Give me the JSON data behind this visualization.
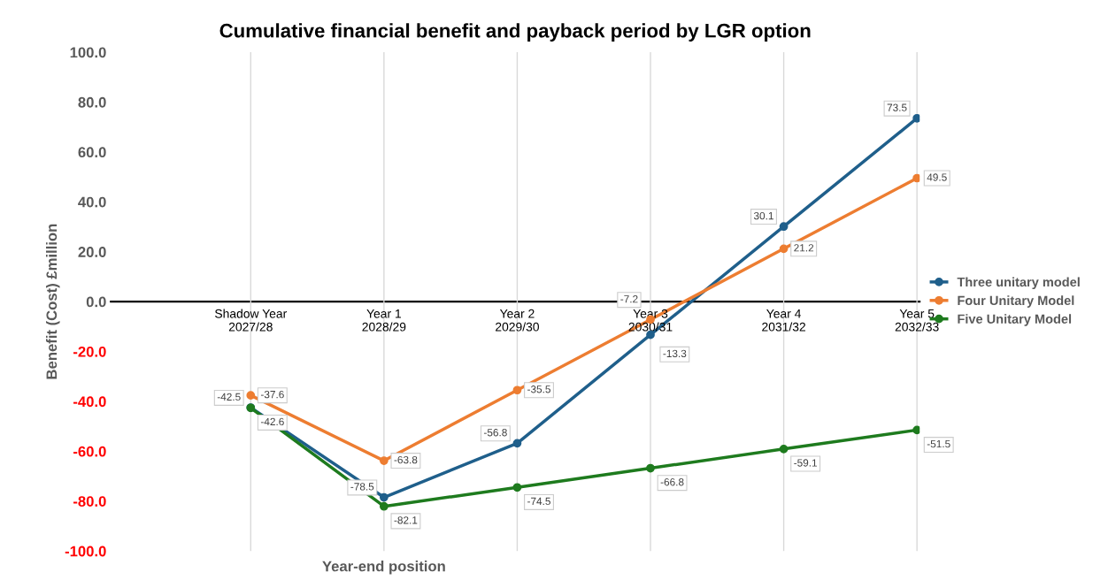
{
  "chart_data": {
    "type": "line",
    "title": "Cumulative financial benefit and payback period by LGR option",
    "xlabel": "Year-end position",
    "ylabel": "Benefit (Cost) £million",
    "categories": [
      "Shadow Year\n2027/28",
      "Year 1\n2028/29",
      "Year 2\n2029/30",
      "Year 3\n2030/31",
      "Year 4\n2031/32",
      "Year 5\n2032/33"
    ],
    "series": [
      {
        "name": "Three unitary model",
        "color": "#1f5f8b",
        "values": [
          -42.5,
          -78.5,
          -56.8,
          -13.3,
          30.1,
          73.5
        ]
      },
      {
        "name": "Four Unitary Model",
        "color": "#ed7d31",
        "values": [
          -37.6,
          -63.8,
          -35.5,
          -7.2,
          21.2,
          49.5
        ]
      },
      {
        "name": "Five Unitary Model",
        "color": "#1e7b1e",
        "values": [
          -42.6,
          -82.1,
          -74.5,
          -66.8,
          -59.1,
          -51.5
        ]
      }
    ],
    "ylim": [
      -100,
      100
    ],
    "yticks": [
      {
        "value": -100,
        "label": "-100.0"
      },
      {
        "value": -80,
        "label": "-80.0"
      },
      {
        "value": -60,
        "label": "-60.0"
      },
      {
        "value": -40,
        "label": "-40.0"
      },
      {
        "value": -20,
        "label": "-20.0"
      },
      {
        "value": 0,
        "label": "0.0"
      },
      {
        "value": 20,
        "label": "20.0"
      },
      {
        "value": 40,
        "label": "40.0"
      },
      {
        "value": 60,
        "label": "60.0"
      },
      {
        "value": 80,
        "label": "80.0"
      },
      {
        "value": 100,
        "label": "100.0"
      }
    ],
    "grid": "x",
    "legend": "right",
    "marker": "circle",
    "line_style": "solid",
    "data_labels": true
  }
}
